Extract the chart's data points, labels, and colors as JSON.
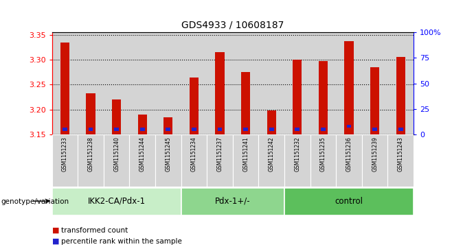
{
  "title": "GDS4933 / 10608187",
  "samples": [
    "GSM1151233",
    "GSM1151238",
    "GSM1151240",
    "GSM1151244",
    "GSM1151245",
    "GSM1151234",
    "GSM1151237",
    "GSM1151241",
    "GSM1151242",
    "GSM1151232",
    "GSM1151235",
    "GSM1151236",
    "GSM1151239",
    "GSM1151243"
  ],
  "groups": [
    {
      "label": "IKK2-CA/Pdx-1",
      "indices": [
        0,
        1,
        2,
        3,
        4
      ],
      "color": "#c8eec8"
    },
    {
      "label": "Pdx-1+/-",
      "indices": [
        5,
        6,
        7,
        8
      ],
      "color": "#8ed68e"
    },
    {
      "label": "control",
      "indices": [
        9,
        10,
        11,
        12,
        13
      ],
      "color": "#5cbf5c"
    }
  ],
  "red_values": [
    3.335,
    3.232,
    3.22,
    3.19,
    3.185,
    3.265,
    3.315,
    3.275,
    3.198,
    3.3,
    3.298,
    3.337,
    3.285,
    3.305
  ],
  "blue_pct": [
    5,
    5,
    5,
    5,
    5,
    5,
    5,
    5,
    5,
    5,
    5,
    8,
    5,
    5
  ],
  "y_min": 3.15,
  "y_max": 3.355,
  "y_ticks_left": [
    3.15,
    3.2,
    3.25,
    3.3,
    3.35
  ],
  "y_ticks_right": [
    0,
    25,
    50,
    75,
    100
  ],
  "bar_color_red": "#cc1100",
  "bar_color_blue": "#2222cc",
  "bar_width": 0.35,
  "blue_bar_width": 0.18,
  "col_bg_color": "#d4d4d4",
  "group_label": "genotype/variation",
  "legend_red": "transformed count",
  "legend_blue": "percentile rank within the sample"
}
